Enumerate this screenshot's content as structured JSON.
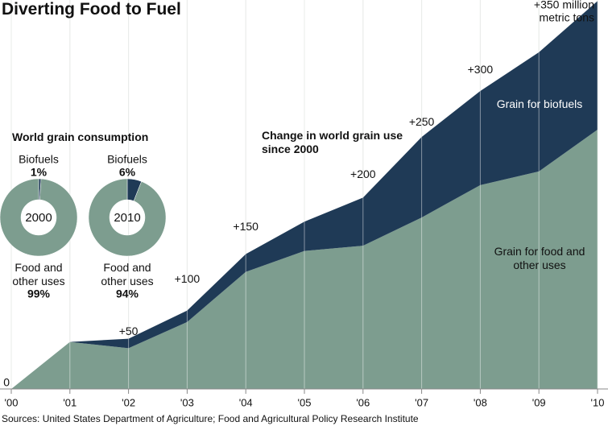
{
  "title": "Diverting Food to Fuel",
  "source": "Sources: United States Department of Agriculture; Food and Agricultural Policy Research Institute",
  "chart_data": [
    {
      "type": "area",
      "stacked": true,
      "title": "Change in world grain use since 2000",
      "categories": [
        "'00",
        "'01",
        "'02",
        "'03",
        "'04",
        "'05",
        "'06",
        "'07",
        "'08",
        "'09",
        "'10"
      ],
      "series": [
        {
          "name": "Grain for food and other uses",
          "color": "#7d9d8f",
          "values": [
            0,
            45,
            39,
            64,
            112,
            132,
            137,
            164,
            195,
            208,
            248
          ]
        },
        {
          "name": "Grain for biofuels",
          "color": "#1f3a56",
          "values": [
            0,
            0,
            9,
            11,
            17,
            28,
            46,
            77,
            90,
            114,
            123
          ]
        }
      ],
      "ylim": [
        0,
        372
      ],
      "grid": true,
      "annotations": [
        {
          "label": "0",
          "value": 0,
          "category": "'00"
        },
        {
          "label": "+50",
          "value": 50,
          "category": "'02"
        },
        {
          "label": "+100",
          "value": 100,
          "category": "'03"
        },
        {
          "label": "+150",
          "value": 150,
          "category": "'04"
        },
        {
          "label": "+200",
          "value": 200,
          "category": "'06"
        },
        {
          "label": "+250",
          "value": 250,
          "category": "'07"
        },
        {
          "label": "+300",
          "value": 300,
          "category": "'08"
        },
        {
          "label": "+350 million",
          "unit": "metric tons",
          "value": 350,
          "category": "'10"
        }
      ]
    },
    {
      "type": "pie",
      "title": "World grain consumption",
      "center_label": "2000",
      "categories": [
        "Biofuels",
        "Food and other uses"
      ],
      "values": [
        1,
        99
      ],
      "value_labels": [
        "1%",
        "99%"
      ],
      "colors": [
        "#1f3a56",
        "#7d9d8f"
      ]
    },
    {
      "type": "pie",
      "center_label": "2010",
      "categories": [
        "Biofuels",
        "Food and other uses"
      ],
      "values": [
        6,
        94
      ],
      "value_labels": [
        "6%",
        "94%"
      ],
      "colors": [
        "#1f3a56",
        "#7d9d8f"
      ]
    }
  ]
}
